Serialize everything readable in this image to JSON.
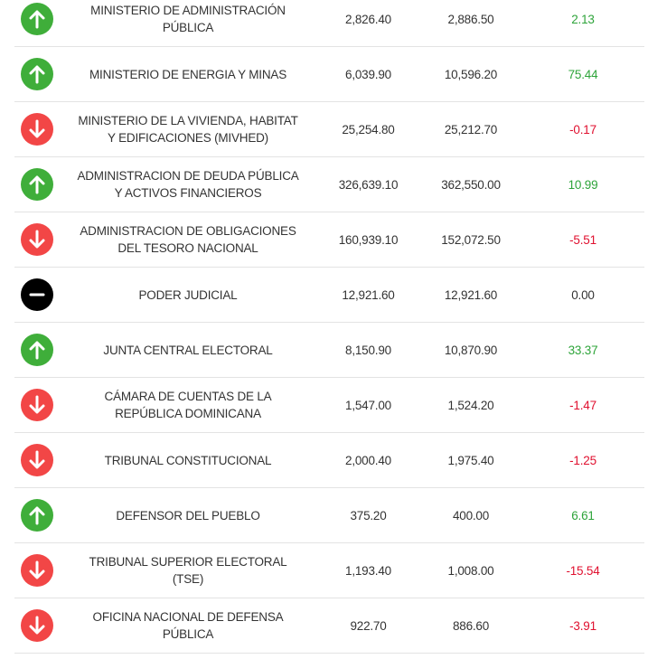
{
  "table": {
    "rows": [
      {
        "name": "MINISTERIO DE ADMINISTRACIÓN PÚBLICA",
        "v1": "2,826.40",
        "v2": "2,886.50",
        "change": "2.13",
        "trend": "up"
      },
      {
        "name": "MINISTERIO DE ENERGIA Y MINAS",
        "v1": "6,039.90",
        "v2": "10,596.20",
        "change": "75.44",
        "trend": "up"
      },
      {
        "name": "MINISTERIO DE LA VIVIENDA, HABITAT Y EDIFICACIONES (MIVHED)",
        "v1": "25,254.80",
        "v2": "25,212.70",
        "change": "-0.17",
        "trend": "down"
      },
      {
        "name": "ADMINISTRACION DE DEUDA PÚBLICA Y ACTIVOS FINANCIEROS",
        "v1": "326,639.10",
        "v2": "362,550.00",
        "change": "10.99",
        "trend": "up"
      },
      {
        "name": "ADMINISTRACION DE OBLIGACIONES DEL TESORO NACIONAL",
        "v1": "160,939.10",
        "v2": "152,072.50",
        "change": "-5.51",
        "trend": "down"
      },
      {
        "name": "PODER JUDICIAL",
        "v1": "12,921.60",
        "v2": "12,921.60",
        "change": "0.00",
        "trend": "flat"
      },
      {
        "name": "JUNTA CENTRAL ELECTORAL",
        "v1": "8,150.90",
        "v2": "10,870.90",
        "change": "33.37",
        "trend": "up"
      },
      {
        "name": "CÁMARA DE CUENTAS DE LA REPÚBLICA DOMINICANA",
        "v1": "1,547.00",
        "v2": "1,524.20",
        "change": "-1.47",
        "trend": "down"
      },
      {
        "name": "TRIBUNAL CONSTITUCIONAL",
        "v1": "2,000.40",
        "v2": "1,975.40",
        "change": "-1.25",
        "trend": "down"
      },
      {
        "name": "DEFENSOR DEL PUEBLO",
        "v1": "375.20",
        "v2": "400.00",
        "change": "6.61",
        "trend": "up"
      },
      {
        "name": "TRIBUNAL SUPERIOR ELECTORAL (TSE)",
        "v1": "1,193.40",
        "v2": "1,008.00",
        "change": "-15.54",
        "trend": "down"
      },
      {
        "name": "OFICINA NACIONAL DE DEFENSA PÚBLICA",
        "v1": "922.70",
        "v2": "886.60",
        "change": "-3.91",
        "trend": "down"
      }
    ]
  }
}
